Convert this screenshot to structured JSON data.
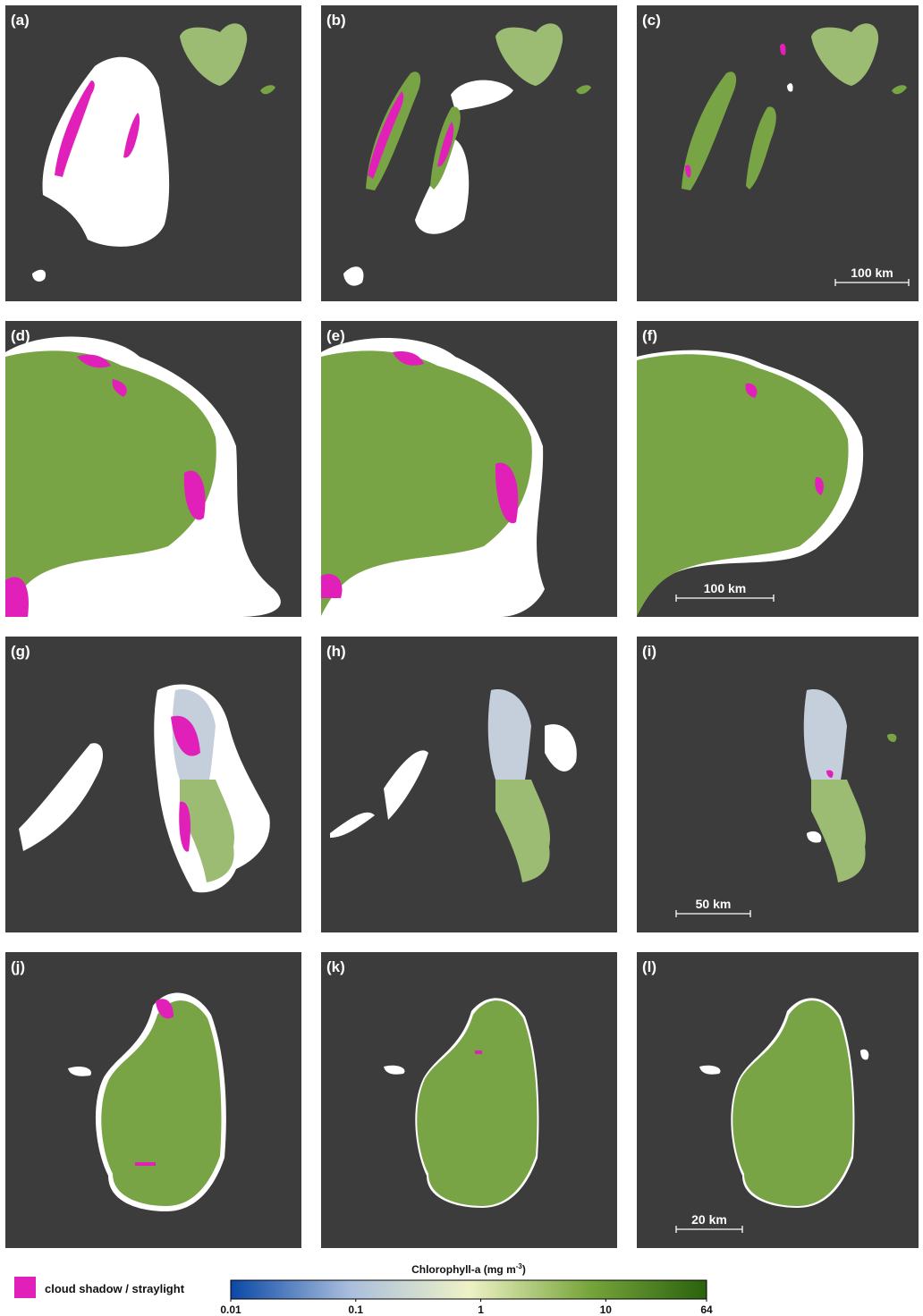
{
  "panels": [
    {
      "label": "(a)"
    },
    {
      "label": "(b)"
    },
    {
      "label": "(c)",
      "scale_bar": "100 km"
    },
    {
      "label": "(d)"
    },
    {
      "label": "(e)"
    },
    {
      "label": "(f)",
      "scale_bar": "100 km"
    },
    {
      "label": "(g)"
    },
    {
      "label": "(h)"
    },
    {
      "label": "(i)",
      "scale_bar": "50 km"
    },
    {
      "label": "(j)"
    },
    {
      "label": "(k)"
    },
    {
      "label": "(l)",
      "scale_bar": "20 km"
    }
  ],
  "legend": {
    "label": "cloud shadow / straylight",
    "color": "#e020b8"
  },
  "colorbar": {
    "title_parts": [
      "Chlorophyll-a (mg m",
      "-3",
      ")"
    ],
    "scale": "log",
    "lim": [
      0.01,
      64
    ],
    "ticks": [
      0.01,
      0.1,
      1,
      10,
      64
    ],
    "colors": [
      "#0a48a6",
      "#a9bedd",
      "#eef2c6",
      "#78a63c",
      "#2a620e"
    ]
  }
}
